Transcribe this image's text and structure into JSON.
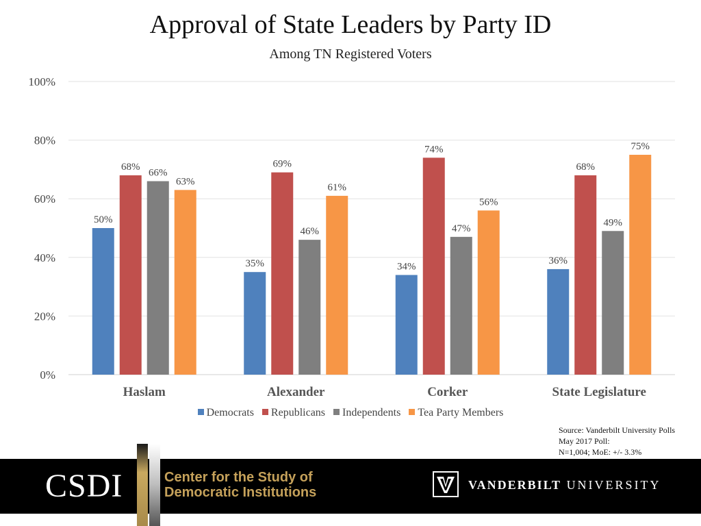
{
  "chart_data": {
    "type": "bar",
    "title": "Approval of State Leaders by Party ID",
    "subtitle": "Among TN Registered Voters",
    "categories": [
      "Haslam",
      "Alexander",
      "Corker",
      "State Legislature"
    ],
    "series": [
      {
        "name": "Democrats",
        "color": "#4f81bd",
        "values": [
          50,
          35,
          34,
          36
        ],
        "labels": [
          "50%",
          "35%",
          "34%",
          "36%"
        ]
      },
      {
        "name": "Republicans",
        "color": "#c0504d",
        "values": [
          68,
          69,
          74,
          68
        ],
        "labels": [
          "68%",
          "69%",
          "74%",
          "68%"
        ]
      },
      {
        "name": "Independents",
        "color": "#7f7f7f",
        "values": [
          66,
          46,
          47,
          49
        ],
        "labels": [
          "66%",
          "46%",
          "47%",
          "49%"
        ]
      },
      {
        "name": "Tea Party Members",
        "color": "#f79646",
        "values": [
          63,
          61,
          56,
          75
        ],
        "labels": [
          "63%",
          "61%",
          "56%",
          "75%"
        ]
      }
    ],
    "ylim": [
      0,
      100
    ],
    "yticks": [
      0,
      20,
      40,
      60,
      80,
      100
    ],
    "ytick_labels": [
      "0%",
      "20%",
      "40%",
      "60%",
      "80%",
      "100%"
    ],
    "grid": true,
    "legend": "bottom"
  },
  "source": {
    "line1": "Source: Vanderbilt University Polls",
    "line2": "May 2017 Poll:",
    "line3": "N=1,004; MoE: +/- 3.3%"
  },
  "footer": {
    "csdi": "CSDI",
    "center_line1": "Center for the Study of",
    "center_line2": "Democratic Institutions",
    "vu_bold": "VANDERBILT",
    "vu_rest": "UNIVERSITY"
  }
}
